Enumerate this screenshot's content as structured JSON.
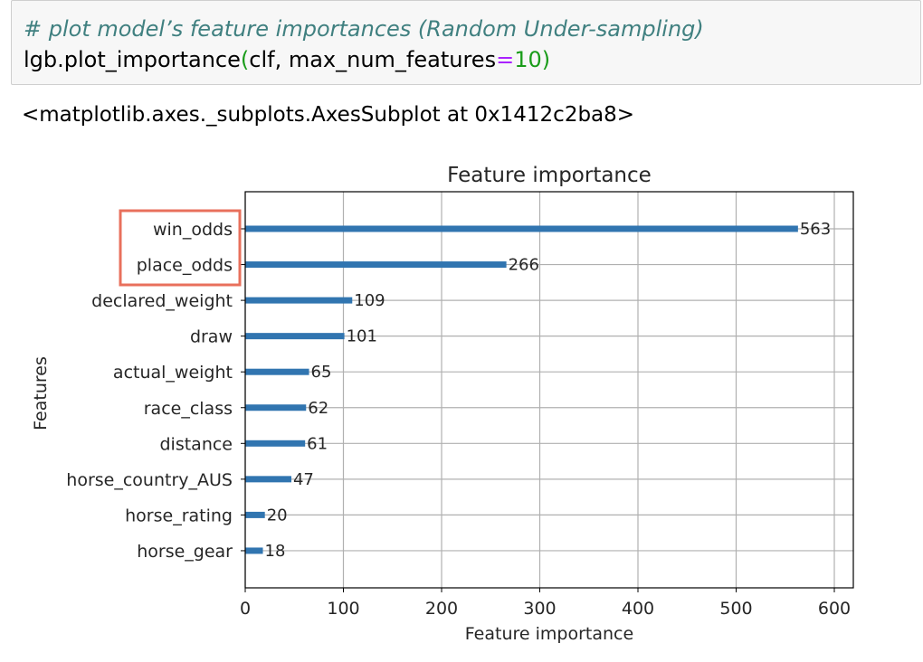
{
  "code_cell": {
    "comment": "# plot model’s feature importances (Random Under-sampling)",
    "call_prefix": "lgb.plot_importance",
    "call_open_paren": "(",
    "call_args": "clf, max_num_features",
    "call_equals": "=",
    "call_value": "10",
    "call_close_paren": ")"
  },
  "output": {
    "repr_text": "<matplotlib.axes._subplots.AxesSubplot at 0x1412c2ba8>"
  },
  "colors": {
    "bar": "#3175b0",
    "highlight_box": "#e8705c",
    "grid": "#b0b0b0",
    "comment": "#408080"
  },
  "chart_data": {
    "type": "bar",
    "orientation": "horizontal",
    "title": "Feature importance",
    "xlabel": "Feature importance",
    "ylabel": "Features",
    "xlim": [
      0,
      620
    ],
    "xticks": [
      0,
      100,
      200,
      300,
      400,
      500,
      600
    ],
    "grid": true,
    "categories": [
      "win_odds",
      "place_odds",
      "declared_weight",
      "draw",
      "actual_weight",
      "race_class",
      "distance",
      "horse_country_AUS",
      "horse_rating",
      "horse_gear"
    ],
    "values": [
      563,
      266,
      109,
      101,
      65,
      62,
      61,
      47,
      20,
      18
    ],
    "highlighted_categories": [
      "win_odds",
      "place_odds"
    ]
  }
}
